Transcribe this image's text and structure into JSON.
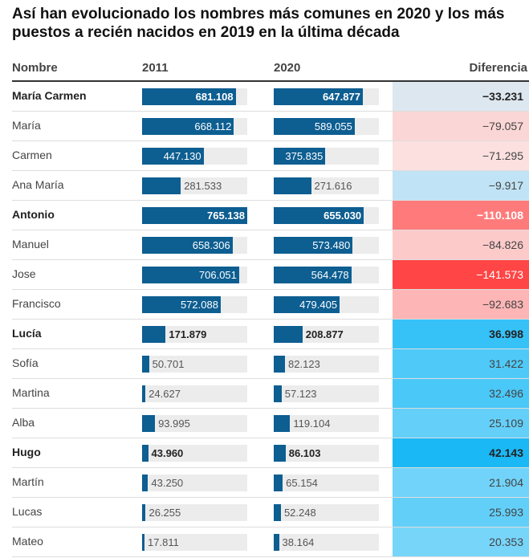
{
  "header": {
    "title": "Así han evolucionado los nombres más comunes en 2020 y los más puestos a recién nacidos en 2019 en la última década"
  },
  "table": {
    "columns": [
      "Nombre",
      "2011",
      "2020",
      "Diferencia"
    ],
    "rows": [
      {
        "name": "María Carmen",
        "bold": true,
        "y2011": {
          "value": 681108,
          "label": "681.108"
        },
        "y2020": {
          "value": 647877,
          "label": "647.877"
        },
        "diff": {
          "value": -33231,
          "label": "−33.231"
        },
        "color": "#dde7ef"
      },
      {
        "name": "María",
        "bold": false,
        "y2011": {
          "value": 668112,
          "label": "668.112"
        },
        "y2020": {
          "value": 589055,
          "label": "589.055"
        },
        "diff": {
          "value": -79057,
          "label": "−79.057"
        },
        "color": "#fbd6d6"
      },
      {
        "name": "Carmen",
        "bold": false,
        "y2011": {
          "value": 447130,
          "label": "447.130"
        },
        "y2020": {
          "value": 375835,
          "label": "375.835"
        },
        "diff": {
          "value": -71295,
          "label": "−71.295"
        },
        "color": "#fce0e0"
      },
      {
        "name": "Ana María",
        "bold": false,
        "y2011": {
          "value": 281533,
          "label": "281.533"
        },
        "y2020": {
          "value": 271616,
          "label": "271.616"
        },
        "diff": {
          "value": -9917,
          "label": "−9.917"
        },
        "color": "#c0e3f5"
      },
      {
        "name": "Antonio",
        "bold": true,
        "y2011": {
          "value": 765138,
          "label": "765.138"
        },
        "y2020": {
          "value": 655030,
          "label": "655.030"
        },
        "diff": {
          "value": -110108,
          "label": "−110.108"
        },
        "color": "#ff7b7b"
      },
      {
        "name": "Manuel",
        "bold": false,
        "y2011": {
          "value": 658306,
          "label": "658.306"
        },
        "y2020": {
          "value": 573480,
          "label": "573.480"
        },
        "diff": {
          "value": -84826,
          "label": "−84.826"
        },
        "color": "#fdcaca"
      },
      {
        "name": "Jose",
        "bold": false,
        "y2011": {
          "value": 706051,
          "label": "706.051"
        },
        "y2020": {
          "value": 564478,
          "label": "564.478"
        },
        "diff": {
          "value": -141573,
          "label": "−141.573"
        },
        "color": "#ff4545"
      },
      {
        "name": "Francisco",
        "bold": false,
        "y2011": {
          "value": 572088,
          "label": "572.088"
        },
        "y2020": {
          "value": 479405,
          "label": "479.405"
        },
        "diff": {
          "value": -92683,
          "label": "−92.683"
        },
        "color": "#fdb5b5"
      },
      {
        "name": "Lucía",
        "bold": true,
        "y2011": {
          "value": 171879,
          "label": "171.879"
        },
        "y2020": {
          "value": 208877,
          "label": "208.877"
        },
        "diff": {
          "value": 36998,
          "label": "36.998"
        },
        "color": "#36c1f7"
      },
      {
        "name": "Sofía",
        "bold": false,
        "y2011": {
          "value": 50701,
          "label": "50.701"
        },
        "y2020": {
          "value": 82123,
          "label": "82.123"
        },
        "diff": {
          "value": 31422,
          "label": "31.422"
        },
        "color": "#4fcaf8"
      },
      {
        "name": "Martina",
        "bold": false,
        "y2011": {
          "value": 24627,
          "label": "24.627"
        },
        "y2020": {
          "value": 57123,
          "label": "57.123"
        },
        "diff": {
          "value": 32496,
          "label": "32.496"
        },
        "color": "#4ac8f8"
      },
      {
        "name": "Alba",
        "bold": false,
        "y2011": {
          "value": 93995,
          "label": "93.995"
        },
        "y2020": {
          "value": 119104,
          "label": "119.104"
        },
        "diff": {
          "value": 25109,
          "label": "25.109"
        },
        "color": "#64d0f9"
      },
      {
        "name": "Hugo",
        "bold": true,
        "y2011": {
          "value": 43960,
          "label": "43.960"
        },
        "y2020": {
          "value": 86103,
          "label": "86.103"
        },
        "diff": {
          "value": 42143,
          "label": "42.143"
        },
        "color": "#1ab8f5"
      },
      {
        "name": "Martín",
        "bold": false,
        "y2011": {
          "value": 43250,
          "label": "43.250"
        },
        "y2020": {
          "value": 65154,
          "label": "65.154"
        },
        "diff": {
          "value": 21904,
          "label": "21.904"
        },
        "color": "#71d3f9"
      },
      {
        "name": "Lucas",
        "bold": false,
        "y2011": {
          "value": 26255,
          "label": "26.255"
        },
        "y2020": {
          "value": 52248,
          "label": "52.248"
        },
        "diff": {
          "value": 25993,
          "label": "25.993"
        },
        "color": "#62cff9"
      },
      {
        "name": "Mateo",
        "bold": false,
        "y2011": {
          "value": 17811,
          "label": "17.811"
        },
        "y2020": {
          "value": 38164,
          "label": "38.164"
        },
        "diff": {
          "value": 20353,
          "label": "20.353"
        },
        "color": "#77d5fa"
      }
    ]
  }
}
